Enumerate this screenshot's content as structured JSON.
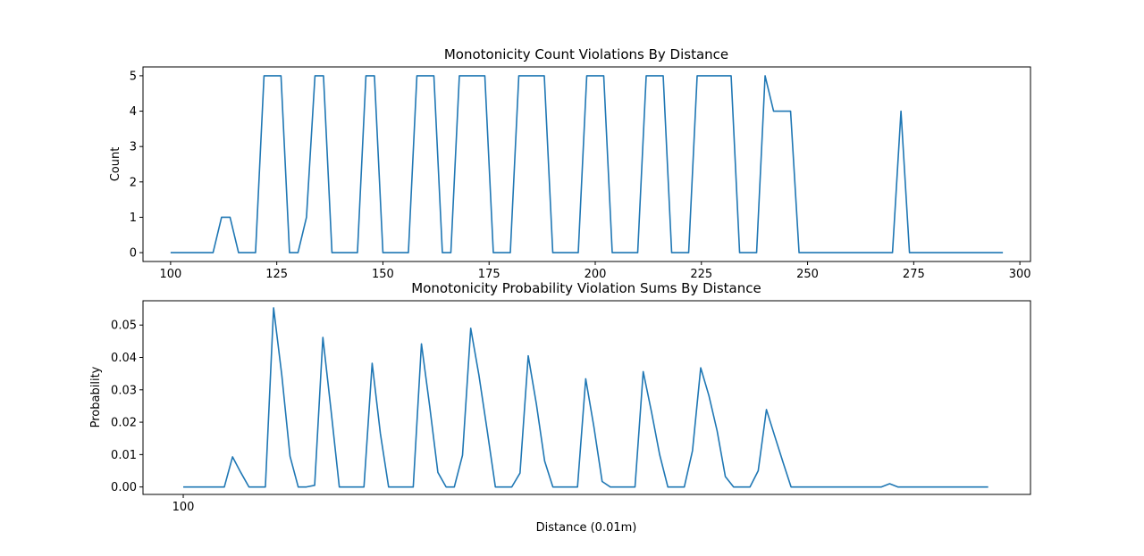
{
  "chart_data": [
    {
      "type": "line",
      "title": "Monotonicity Count Violations By Distance",
      "xlabel": "",
      "ylabel": "Count",
      "xlim": [
        93.5,
        302.5
      ],
      "ylim": [
        -0.25,
        5.25
      ],
      "xticks": [
        100,
        125,
        150,
        175,
        200,
        225,
        250,
        275,
        300
      ],
      "yticks": [
        0,
        1,
        2,
        3,
        4,
        5
      ],
      "ytick_labels": [
        "0",
        "1",
        "2",
        "3",
        "4",
        "5"
      ],
      "color": "#1f77b4",
      "x": [
        100,
        102,
        104,
        106,
        108,
        110,
        112,
        114,
        116,
        118,
        120,
        122,
        124,
        126,
        128,
        130,
        132,
        134,
        136,
        138,
        140,
        142,
        144,
        146,
        148,
        150,
        152,
        154,
        156,
        158,
        160,
        162,
        164,
        166,
        168,
        170,
        172,
        174,
        176,
        178,
        180,
        182,
        184,
        186,
        188,
        190,
        192,
        194,
        196,
        198,
        200,
        202,
        204,
        206,
        208,
        210,
        212,
        214,
        216,
        218,
        220,
        222,
        224,
        226,
        228,
        230,
        232,
        234,
        236,
        238,
        240,
        242,
        244,
        246,
        248,
        250,
        252,
        254,
        256,
        258,
        260,
        262,
        264,
        266,
        268,
        270,
        272,
        274,
        276,
        278,
        280,
        282,
        284,
        286,
        288,
        290,
        292,
        294,
        296
      ],
      "y": [
        0,
        0,
        0,
        0,
        0,
        0,
        1,
        1,
        0,
        0,
        0,
        5,
        5,
        5,
        0,
        0,
        1,
        5,
        5,
        0,
        0,
        0,
        0,
        5,
        5,
        0,
        0,
        0,
        0,
        5,
        5,
        5,
        0,
        0,
        5,
        5,
        5,
        5,
        0,
        0,
        0,
        5,
        5,
        5,
        5,
        0,
        0,
        0,
        0,
        5,
        5,
        5,
        0,
        0,
        0,
        0,
        5,
        5,
        5,
        0,
        0,
        0,
        5,
        5,
        5,
        5,
        5,
        0,
        0,
        0,
        5,
        4,
        4,
        4,
        0,
        0,
        0,
        0,
        0,
        0,
        0,
        0,
        0,
        0,
        0,
        0,
        4,
        0,
        0,
        0,
        0,
        0,
        0,
        0,
        0,
        0,
        0,
        0,
        0
      ]
    },
    {
      "type": "line",
      "title": "Monotonicity Probability Violation Sums By Distance",
      "xlabel": "Distance (0.01m)",
      "ylabel": "Probability",
      "xlim": [
        90.2,
        306.3
      ],
      "ylim": [
        -0.0023,
        0.0575
      ],
      "xticks": [
        100
      ],
      "yticks": [
        0.0,
        0.01,
        0.02,
        0.03,
        0.04,
        0.05
      ],
      "ytick_labels": [
        "0.00",
        "0.01",
        "0.02",
        "0.03",
        "0.04",
        "0.05"
      ],
      "color": "#1f77b4",
      "x": [
        100,
        102,
        104,
        106,
        108,
        110,
        112,
        114,
        116,
        118,
        120,
        122,
        124,
        126,
        128,
        130,
        132,
        134,
        136,
        138,
        140,
        142,
        144,
        146,
        148,
        150,
        152,
        154,
        156,
        158,
        160,
        162,
        164,
        166,
        168,
        170,
        172,
        174,
        176,
        178,
        180,
        182,
        184,
        186,
        188,
        190,
        192,
        194,
        196,
        198,
        200,
        202,
        204,
        206,
        208,
        210,
        212,
        214,
        216,
        218,
        220,
        222,
        224,
        226,
        228,
        230,
        232,
        234,
        236,
        238,
        240,
        242,
        244,
        246,
        248,
        250,
        252,
        254,
        256,
        258,
        260,
        262,
        264,
        266,
        268,
        270,
        272,
        274,
        276,
        278,
        280,
        282,
        284,
        286,
        288,
        290,
        292,
        294,
        296
      ],
      "y": [
        0,
        0,
        0,
        0,
        0,
        0,
        0.0093,
        0.0045,
        0,
        0,
        0,
        0.0553,
        0.0345,
        0.0095,
        0,
        0,
        0.0005,
        0.0462,
        0.0235,
        0,
        0,
        0,
        0,
        0.0382,
        0.0165,
        0,
        0,
        0,
        0,
        0.0442,
        0.025,
        0.0045,
        0,
        0,
        0.0098,
        0.049,
        0.0345,
        0.0175,
        0,
        0,
        0,
        0.0043,
        0.0405,
        0.0255,
        0.008,
        0,
        0,
        0,
        0,
        0.0334,
        0.0185,
        0.0017,
        0,
        0,
        0,
        0,
        0.0356,
        0.0233,
        0.01,
        0,
        0,
        0,
        0.0112,
        0.0368,
        0.0282,
        0.0173,
        0.0032,
        0,
        0,
        0,
        0.005,
        0.0239,
        0.0158,
        0.0078,
        0,
        0,
        0,
        0,
        0,
        0,
        0,
        0,
        0,
        0,
        0,
        0,
        0.001,
        0,
        0,
        0,
        0,
        0,
        0,
        0,
        0,
        0,
        0,
        0,
        0
      ]
    }
  ]
}
